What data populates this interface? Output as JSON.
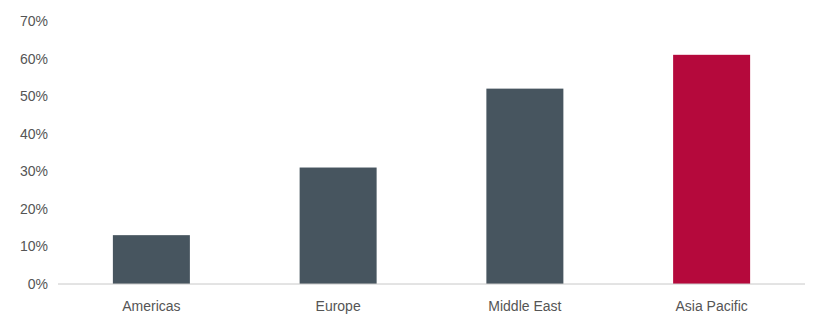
{
  "chart_data": {
    "type": "bar",
    "categories": [
      "Americas",
      "Europe",
      "Middle East",
      "Asia Pacific"
    ],
    "values": [
      13,
      31,
      52,
      61
    ],
    "colors": [
      "#47555f",
      "#47555f",
      "#47555f",
      "#b5093c"
    ],
    "ylim": [
      0,
      70
    ],
    "yticks": [
      {
        "value": 0,
        "label": "0%"
      },
      {
        "value": 10,
        "label": "10%"
      },
      {
        "value": 20,
        "label": "20%"
      },
      {
        "value": 30,
        "label": "30%"
      },
      {
        "value": 40,
        "label": "40%"
      },
      {
        "value": 50,
        "label": "50%"
      },
      {
        "value": 60,
        "label": "60%"
      },
      {
        "value": 70,
        "label": "70%"
      }
    ],
    "grid": false
  }
}
